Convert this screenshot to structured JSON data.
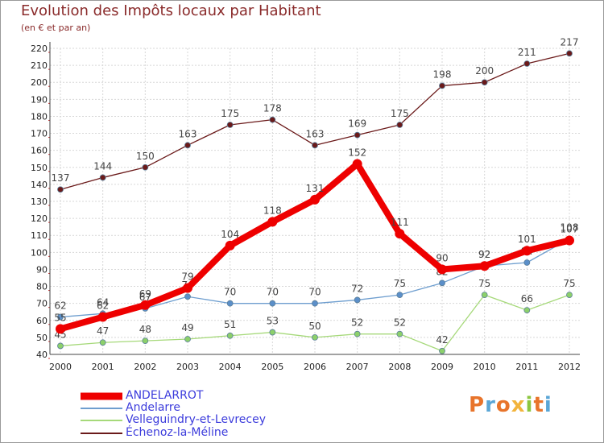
{
  "header": {
    "title": "Evolution des Impôts locaux par Habitant",
    "subtitle": "(en € et par an)"
  },
  "logo": {
    "text": "Proxiti",
    "colors": [
      "#e8742b",
      "#5aa6d6",
      "#e8742b",
      "#f2b43c",
      "#8cc63f",
      "#e8742b",
      "#5aa6d6"
    ]
  },
  "chart_data": {
    "type": "line",
    "title": "Evolution des Impôts locaux par Habitant",
    "subtitle": "(en € et par an)",
    "xlabel": "",
    "ylabel": "",
    "ylim": [
      40,
      220
    ],
    "ytick_step": 10,
    "grid": true,
    "legend_position": "bottom-left",
    "x": [
      "2000",
      "2001",
      "2002",
      "2003",
      "2004",
      "2005",
      "2006",
      "2007",
      "2008",
      "2009",
      "2010",
      "2011",
      "2012"
    ],
    "series": [
      {
        "name": "Échenoz-la-Méline",
        "color": "#6b1a1a",
        "point_color": "#6b1a1a",
        "values": [
          137,
          144,
          150,
          163,
          175,
          178,
          163,
          169,
          175,
          198,
          200,
          211,
          217
        ]
      },
      {
        "name": "Velleguindry-et-Levrecey",
        "color": "#a6d97a",
        "point_color": "#8cd06a",
        "values": [
          45,
          47,
          48,
          49,
          51,
          53,
          50,
          52,
          52,
          42,
          75,
          66,
          75
        ]
      },
      {
        "name": "Andelarre",
        "color": "#6e9ecf",
        "point_color": "#5b8fc9",
        "values": [
          62,
          64,
          67,
          74,
          70,
          70,
          70,
          72,
          75,
          82,
          92,
          94,
          108
        ]
      },
      {
        "name": "ANDELARROT",
        "color": "#ee0000",
        "point_color": "#ee0000",
        "values": [
          55,
          62,
          69,
          79,
          104,
          118,
          131,
          152,
          111,
          90,
          92,
          101,
          107
        ]
      }
    ],
    "legend": [
      "ANDELARROT",
      "Andelarre",
      "Velleguindry-et-Levrecey",
      "Échenoz-la-Méline"
    ]
  }
}
